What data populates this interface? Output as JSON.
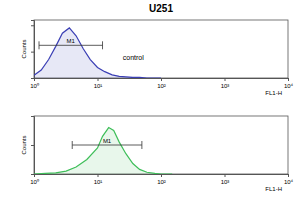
{
  "chart_data": [
    {
      "type": "line",
      "title": "U251",
      "x_label": "FL1-H",
      "y_label": "Counts",
      "log": "x",
      "x": [
        1,
        1.3,
        1.7,
        2.2,
        2.8,
        3.6,
        4.6,
        6,
        7.7,
        10,
        13,
        17,
        22,
        28,
        36,
        46,
        60,
        100
      ],
      "series": [
        {
          "color": "#3b3fb5",
          "values": [
            5,
            15,
            35,
            60,
            85,
            95,
            80,
            55,
            35,
            20,
            12,
            6,
            3,
            2,
            1,
            1,
            0,
            0
          ]
        }
      ],
      "xlim": [
        1,
        10000
      ],
      "xticks": [
        {
          "value": 1,
          "label": "10⁰"
        },
        {
          "value": 10,
          "label": "10¹"
        },
        {
          "value": 100,
          "label": "10²"
        },
        {
          "value": 1000,
          "label": "10³"
        },
        {
          "value": 10000,
          "label": "10⁴"
        }
      ],
      "ylim": [
        0,
        110
      ],
      "yticks": [
        0,
        50,
        100
      ],
      "tick_labels": "x",
      "annotations": [
        {
          "text": "M1",
          "x": [
            1.2,
            12
          ],
          "y": 62
        },
        {
          "text": "control",
          "x": 25,
          "y": 35
        }
      ]
    },
    {
      "type": "line",
      "x_label": "FL1-H",
      "y_label": "Counts",
      "log": "x",
      "x": [
        1,
        1.5,
        2.2,
        3.2,
        4.6,
        6.8,
        10,
        12,
        15,
        18,
        22,
        28,
        36,
        46,
        60,
        80,
        100,
        150
      ],
      "series": [
        {
          "color": "#3fbf5a",
          "values": [
            0,
            1,
            2,
            5,
            12,
            25,
            45,
            65,
            80,
            75,
            55,
            35,
            18,
            8,
            3,
            1,
            0,
            0
          ]
        }
      ],
      "xlim": [
        1,
        10000
      ],
      "xticks": [
        {
          "value": 1,
          "label": "10⁰"
        },
        {
          "value": 10,
          "label": "10¹"
        },
        {
          "value": 100,
          "label": "10²"
        },
        {
          "value": 1000,
          "label": "10³"
        },
        {
          "value": 10000,
          "label": "10⁴"
        }
      ],
      "ylim": [
        0,
        100
      ],
      "yticks": [
        0,
        50,
        100
      ],
      "tick_labels": "x",
      "annotations": [
        {
          "text": "M1",
          "x": [
            4,
            50
          ],
          "y": 50
        }
      ]
    }
  ]
}
